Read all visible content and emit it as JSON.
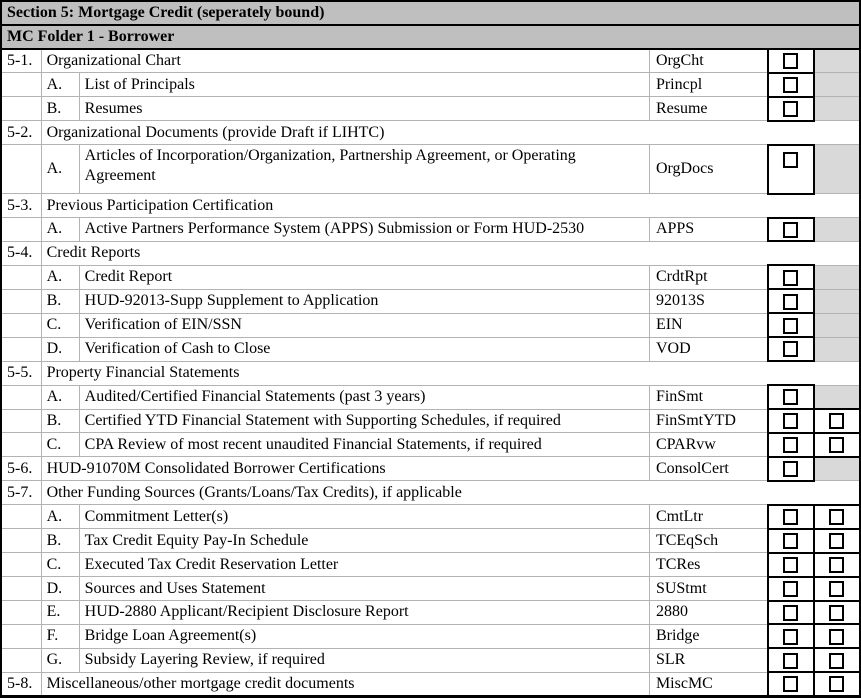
{
  "document": {
    "section_title": "Section 5: Mortgage Credit (seperately bound)",
    "folder_title": "MC Folder 1 - Borrower"
  },
  "colors": {
    "header_bg": "#bfbfbf",
    "na_cell_bg": "#d9d9d9",
    "grid_line": "#b3b3b3",
    "border": "#000000"
  },
  "rows": [
    {
      "num": "5-1.",
      "letter": "",
      "desc": "Organizational Chart",
      "code": "OrgCht",
      "checkboxes": 1,
      "tall": false
    },
    {
      "num": "",
      "letter": "A.",
      "desc": "List of Principals",
      "code": "Princpl",
      "checkboxes": 1,
      "tall": false
    },
    {
      "num": "",
      "letter": "B.",
      "desc": "Resumes",
      "code": "Resume",
      "checkboxes": 1,
      "tall": false
    },
    {
      "num": "5-2.",
      "letter": "",
      "desc": "Organizational Documents (provide Draft if LIHTC)",
      "code": "",
      "checkboxes": 0,
      "tall": false
    },
    {
      "num": "",
      "letter": "A.",
      "desc": "Articles of Incorporation/Organization, Partnership Agreement, or Operating Agreement",
      "code": "OrgDocs",
      "checkboxes": 1,
      "tall": true
    },
    {
      "num": "5-3.",
      "letter": "",
      "desc": "Previous Participation Certification",
      "code": "",
      "checkboxes": 0,
      "tall": false
    },
    {
      "num": "",
      "letter": "A.",
      "desc": "Active Partners Performance System (APPS) Submission or Form HUD-2530",
      "code": "APPS",
      "checkboxes": 1,
      "tall": false
    },
    {
      "num": "5-4.",
      "letter": "",
      "desc": "Credit Reports",
      "code": "",
      "checkboxes": 0,
      "tall": false
    },
    {
      "num": "",
      "letter": "A.",
      "desc": "Credit Report",
      "code": "CrdtRpt",
      "checkboxes": 1,
      "tall": false
    },
    {
      "num": "",
      "letter": "B.",
      "desc": "HUD-92013-Supp Supplement to Application",
      "code": "92013S",
      "checkboxes": 1,
      "tall": false
    },
    {
      "num": "",
      "letter": "C.",
      "desc": "Verification of EIN/SSN",
      "code": "EIN",
      "checkboxes": 1,
      "tall": false
    },
    {
      "num": "",
      "letter": "D.",
      "desc": "Verification of Cash to Close",
      "code": "VOD",
      "checkboxes": 1,
      "tall": false
    },
    {
      "num": "5-5.",
      "letter": "",
      "desc": "Property Financial Statements",
      "code": "",
      "checkboxes": 0,
      "tall": false
    },
    {
      "num": "",
      "letter": "A.",
      "desc": "Audited/Certified Financial Statements (past 3 years)",
      "code": "FinSmt",
      "checkboxes": 1,
      "tall": false
    },
    {
      "num": "",
      "letter": "B.",
      "desc": "Certified YTD Financial Statement with Supporting Schedules, if required",
      "code": "FinSmtYTD",
      "checkboxes": 2,
      "tall": false
    },
    {
      "num": "",
      "letter": "C.",
      "desc": "CPA Review of most recent unaudited Financial Statements, if required",
      "code": "CPARvw",
      "checkboxes": 2,
      "tall": false
    },
    {
      "num": "5-6.",
      "letter": "",
      "desc": "HUD-91070M Consolidated Borrower Certifications",
      "code": "ConsolCert",
      "checkboxes": 1,
      "tall": false
    },
    {
      "num": "5-7.",
      "letter": "",
      "desc": "Other Funding Sources (Grants/Loans/Tax Credits), if applicable",
      "code": "",
      "checkboxes": 0,
      "tall": false
    },
    {
      "num": "",
      "letter": "A.",
      "desc": "Commitment Letter(s)",
      "code": "CmtLtr",
      "checkboxes": 2,
      "tall": false
    },
    {
      "num": "",
      "letter": "B.",
      "desc": "Tax Credit Equity Pay-In Schedule",
      "code": "TCEqSch",
      "checkboxes": 2,
      "tall": false
    },
    {
      "num": "",
      "letter": "C.",
      "desc": "Executed Tax Credit Reservation Letter",
      "code": "TCRes",
      "checkboxes": 2,
      "tall": false
    },
    {
      "num": "",
      "letter": "D.",
      "desc": "Sources and Uses Statement",
      "code": "SUStmt",
      "checkboxes": 2,
      "tall": false
    },
    {
      "num": "",
      "letter": "E.",
      "desc": "HUD-2880 Applicant/Recipient Disclosure Report",
      "code": "2880",
      "checkboxes": 2,
      "tall": false
    },
    {
      "num": "",
      "letter": "F.",
      "desc": "Bridge Loan Agreement(s)",
      "code": "Bridge",
      "checkboxes": 2,
      "tall": false
    },
    {
      "num": "",
      "letter": "G.",
      "desc": "Subsidy Layering Review, if required",
      "code": "SLR",
      "checkboxes": 2,
      "tall": false
    },
    {
      "num": "5-8.",
      "letter": "",
      "desc": "Miscellaneous/other mortgage credit documents",
      "code": "MiscMC",
      "checkboxes": 2,
      "tall": false
    }
  ]
}
